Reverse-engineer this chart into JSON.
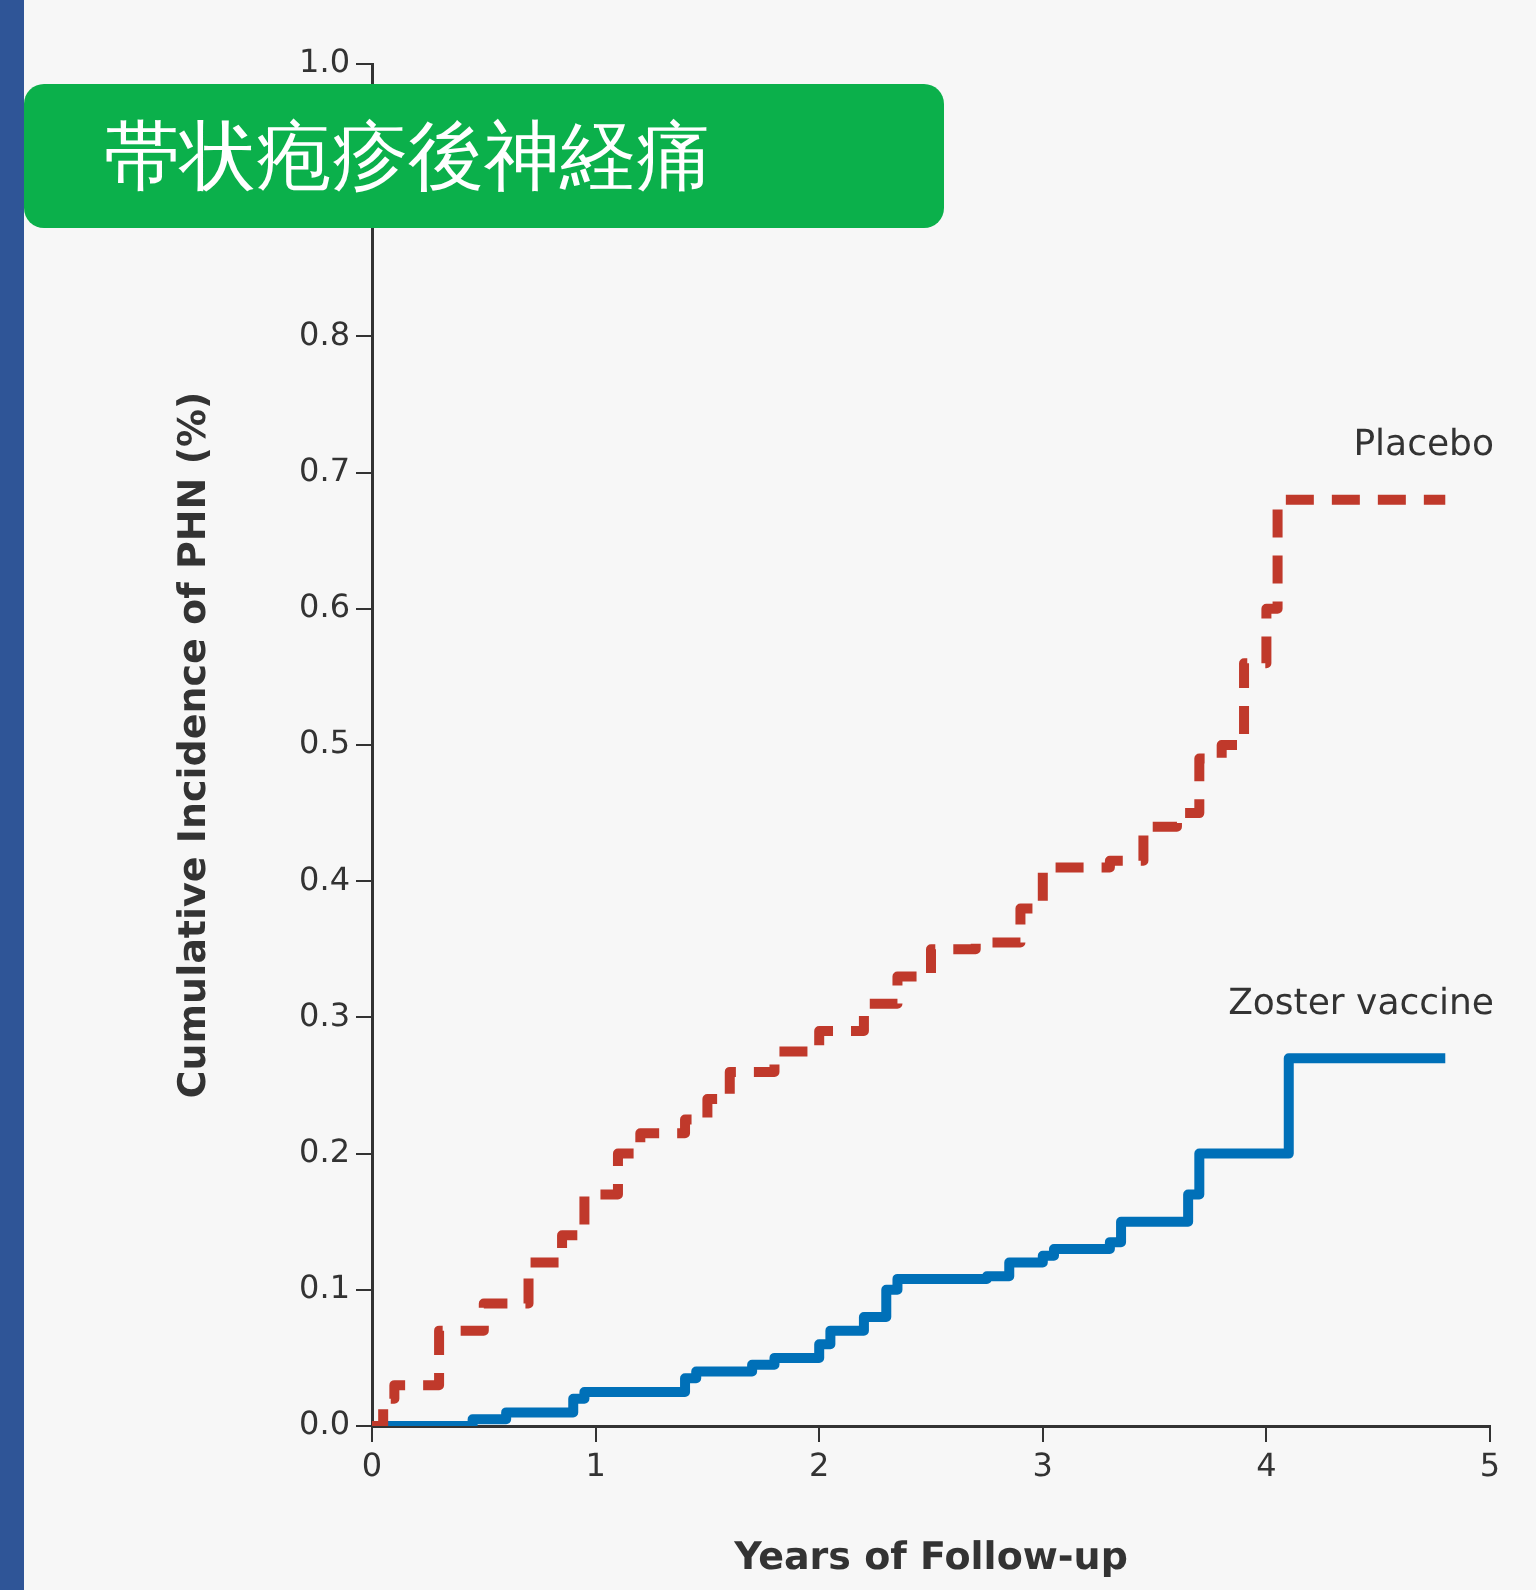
{
  "chart_data": {
    "type": "step",
    "title": "帯状疱疹後神経痛",
    "xlabel": "Years of Follow-up",
    "ylabel": "Cumulative Incidence of PHN (%)",
    "xlim": [
      0,
      5
    ],
    "xticks": [
      0,
      1,
      2,
      3,
      4,
      5
    ],
    "ylim": [
      0,
      1.0
    ],
    "yticks": [
      {
        "value": 0,
        "label": "0.0"
      },
      {
        "value": 0.1,
        "label": "0.1"
      },
      {
        "value": 0.2,
        "label": "0.2"
      },
      {
        "value": 0.3,
        "label": "0.3"
      },
      {
        "value": 0.4,
        "label": "0.4"
      },
      {
        "value": 0.5,
        "label": "0.5"
      },
      {
        "value": 0.6,
        "label": "0.6"
      },
      {
        "value": 0.7,
        "label": "0.7"
      },
      {
        "value": 0.8,
        "label": "0.8"
      },
      {
        "value": 1.0,
        "label": "1.0"
      }
    ],
    "grid": false,
    "legend": false,
    "marker": "none",
    "series": [
      {
        "name": "Placebo",
        "color": "#c0392b",
        "line_style": "dashed",
        "x": [
          0,
          0.05,
          0.1,
          0.3,
          0.5,
          0.7,
          0.85,
          0.95,
          1.1,
          1.2,
          1.4,
          1.5,
          1.6,
          1.8,
          2.0,
          2.2,
          2.35,
          2.5,
          2.7,
          2.9,
          3.0,
          3.3,
          3.45,
          3.6,
          3.7,
          3.8,
          3.9,
          4.0,
          4.05,
          4.8
        ],
        "values": [
          0,
          0.02,
          0.03,
          0.07,
          0.09,
          0.12,
          0.14,
          0.17,
          0.2,
          0.215,
          0.225,
          0.24,
          0.26,
          0.275,
          0.29,
          0.31,
          0.33,
          0.35,
          0.355,
          0.38,
          0.41,
          0.415,
          0.44,
          0.45,
          0.49,
          0.5,
          0.56,
          0.6,
          0.68,
          0.68
        ]
      },
      {
        "name": "Zoster vaccine",
        "color": "#0070b8",
        "line_style": "solid",
        "x": [
          0,
          0.45,
          0.6,
          0.9,
          0.95,
          1.4,
          1.45,
          1.7,
          1.8,
          2.0,
          2.05,
          2.2,
          2.3,
          2.35,
          2.75,
          2.85,
          3.0,
          3.05,
          3.3,
          3.35,
          3.65,
          3.7,
          4.1,
          4.1,
          4.8
        ],
        "values": [
          0,
          0.005,
          0.01,
          0.02,
          0.025,
          0.035,
          0.04,
          0.045,
          0.05,
          0.06,
          0.07,
          0.08,
          0.1,
          0.108,
          0.11,
          0.12,
          0.125,
          0.13,
          0.135,
          0.15,
          0.17,
          0.2,
          0.2,
          0.27,
          0.27
        ]
      }
    ]
  }
}
